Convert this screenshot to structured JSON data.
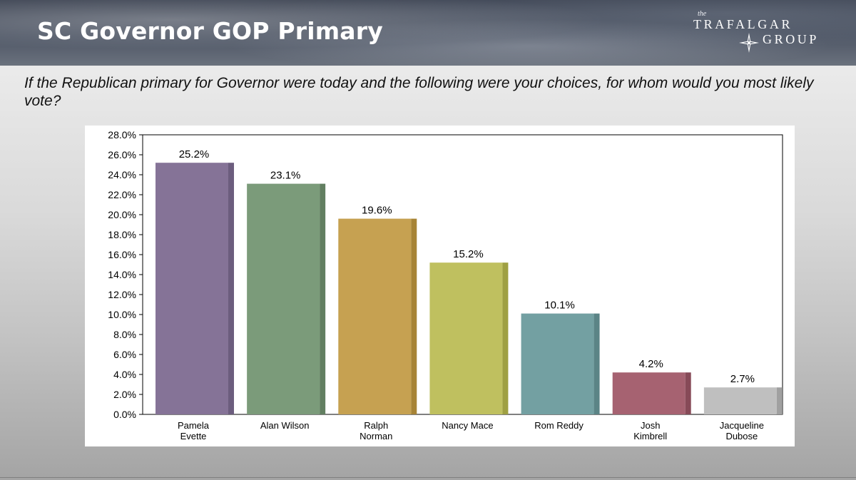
{
  "header": {
    "title": "SC Governor GOP Primary",
    "logo": {
      "the": "the",
      "line1": "TRAFALGAR",
      "line2": "GROUP",
      "icon": "compass-star-icon"
    }
  },
  "question": "If the Republican primary for Governor were today and the following were your choices, for whom would you most likely vote?",
  "chart_data": {
    "type": "bar",
    "categories": [
      [
        "Pamela",
        "Evette"
      ],
      [
        "Alan Wilson"
      ],
      [
        "Ralph",
        "Norman"
      ],
      [
        "Nancy Mace"
      ],
      [
        "Rom Reddy"
      ],
      [
        "Josh",
        "Kimbrell"
      ],
      [
        "Jacqueline",
        "Dubose"
      ]
    ],
    "values": [
      25.2,
      23.1,
      19.6,
      15.2,
      10.1,
      4.2,
      2.7
    ],
    "data_labels": [
      "25.2%",
      "23.1%",
      "19.6%",
      "15.2%",
      "10.1%",
      "4.2%",
      "2.7%"
    ],
    "colors": [
      "#857397",
      "#7b9b7a",
      "#c6a151",
      "#bfc05f",
      "#73a0a2",
      "#a66271",
      "#bfbfbf"
    ],
    "shade_colors": [
      "#6c5d7e",
      "#627f61",
      "#a78436",
      "#9fa042",
      "#5b8486",
      "#874a58",
      "#a0a0a0"
    ],
    "title": "",
    "xlabel": "",
    "ylabel": "",
    "ylim": [
      0,
      28
    ],
    "y_step": 2,
    "y_tick_labels": [
      "0.0%",
      "2.0%",
      "4.0%",
      "6.0%",
      "8.0%",
      "10.0%",
      "12.0%",
      "14.0%",
      "16.0%",
      "18.0%",
      "20.0%",
      "22.0%",
      "24.0%",
      "26.0%",
      "28.0%"
    ],
    "grid": false,
    "legend": "none"
  }
}
